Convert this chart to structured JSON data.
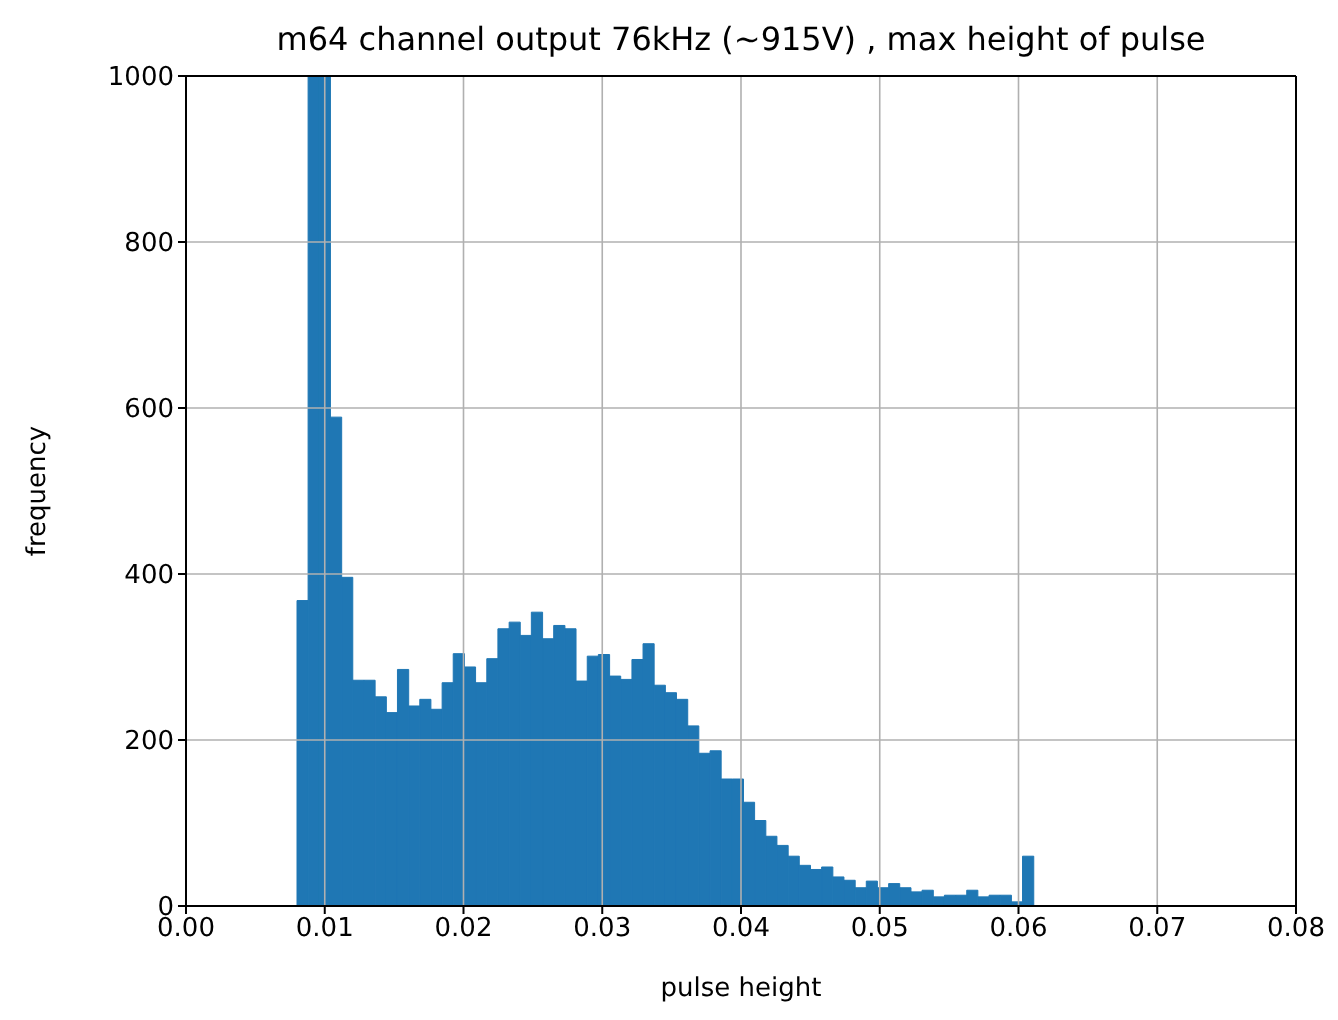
{
  "chart_data": {
    "type": "histogram",
    "title": "m64 channel output 76kHz (~915V) , max height of pulse",
    "xlabel": "pulse height",
    "ylabel": "frequency",
    "color": "#1f77b4",
    "bins": [
      0.008,
      0.0088,
      0.00961,
      0.01041,
      0.01122,
      0.01202,
      0.01283,
      0.01363,
      0.01444,
      0.01524,
      0.01605,
      0.01685,
      0.01765,
      0.01846,
      0.01926,
      0.02007,
      0.02087,
      0.02168,
      0.02248,
      0.02329,
      0.02409,
      0.02489,
      0.0257,
      0.0265,
      0.02731,
      0.02811,
      0.02892,
      0.02972,
      0.03053,
      0.03133,
      0.03214,
      0.03294,
      0.03374,
      0.03455,
      0.03535,
      0.03616,
      0.03696,
      0.03777,
      0.03857,
      0.03938,
      0.04018,
      0.04098,
      0.04179,
      0.04259,
      0.0434,
      0.0442,
      0.04501,
      0.04581,
      0.04662,
      0.04742,
      0.04823,
      0.04903,
      0.04983,
      0.05064,
      0.05144,
      0.05225,
      0.05305,
      0.05386,
      0.05466,
      0.05547,
      0.05627,
      0.05707,
      0.05788,
      0.05868,
      0.05949,
      0.06029,
      0.0611
    ],
    "values": [
      368,
      1000,
      1000,
      589,
      396,
      272,
      272,
      252,
      233,
      285,
      241,
      249,
      237,
      269,
      304,
      288,
      269,
      298,
      334,
      342,
      326,
      354,
      322,
      338,
      334,
      271,
      301,
      303,
      277,
      273,
      297,
      316,
      266,
      257,
      249,
      217,
      184,
      187,
      153,
      153,
      125,
      103,
      84,
      73,
      60,
      49,
      44,
      47,
      35,
      31,
      22,
      30,
      22,
      27,
      22,
      17,
      19,
      11,
      13,
      13,
      19,
      11,
      13,
      13,
      5,
      60
    ],
    "xlim": [
      0,
      0.08
    ],
    "xticks": [
      {
        "value": 0,
        "label": "0.00"
      },
      {
        "value": 0.01,
        "label": "0.01"
      },
      {
        "value": 0.02,
        "label": "0.02"
      },
      {
        "value": 0.03,
        "label": "0.03"
      },
      {
        "value": 0.04,
        "label": "0.04"
      },
      {
        "value": 0.05,
        "label": "0.05"
      },
      {
        "value": 0.06,
        "label": "0.06"
      },
      {
        "value": 0.07,
        "label": "0.07"
      },
      {
        "value": 0.08,
        "label": "0.08"
      }
    ],
    "ylim": [
      0,
      1000
    ],
    "yticks": [
      0,
      200,
      400,
      600,
      800,
      1000
    ],
    "grid": true
  }
}
